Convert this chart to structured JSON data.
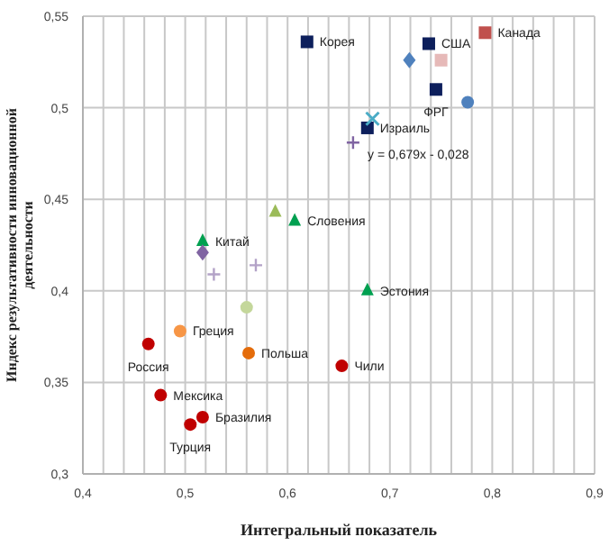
{
  "chart_data": {
    "type": "scatter",
    "xlabel": "Интегральный показатель",
    "ylabel": "Индекс результативности инновационной деятельности",
    "xlim": [
      0.4,
      0.9
    ],
    "ylim": [
      0.3,
      0.55
    ],
    "xticks": [
      {
        "value": 0.4,
        "label": "0,4"
      },
      {
        "value": 0.42,
        "label": null
      },
      {
        "value": 0.44,
        "label": null
      },
      {
        "value": 0.46,
        "label": null
      },
      {
        "value": 0.48,
        "label": null
      },
      {
        "value": 0.5,
        "label": "0,5"
      },
      {
        "value": 0.52,
        "label": null
      },
      {
        "value": 0.54,
        "label": null
      },
      {
        "value": 0.56,
        "label": null
      },
      {
        "value": 0.58,
        "label": null
      },
      {
        "value": 0.6,
        "label": "0,6"
      },
      {
        "value": 0.62,
        "label": null
      },
      {
        "value": 0.64,
        "label": null
      },
      {
        "value": 0.66,
        "label": null
      },
      {
        "value": 0.68,
        "label": null
      },
      {
        "value": 0.7,
        "label": "0,7"
      },
      {
        "value": 0.72,
        "label": null
      },
      {
        "value": 0.74,
        "label": null
      },
      {
        "value": 0.76,
        "label": null
      },
      {
        "value": 0.78,
        "label": null
      },
      {
        "value": 0.8,
        "label": "0,8"
      },
      {
        "value": 0.82,
        "label": null
      },
      {
        "value": 0.84,
        "label": null
      },
      {
        "value": 0.86,
        "label": null
      },
      {
        "value": 0.88,
        "label": null
      },
      {
        "value": 0.9,
        "label": "0,9"
      }
    ],
    "yticks": [
      {
        "value": 0.3,
        "label": "0,3"
      },
      {
        "value": 0.35,
        "label": "0,35"
      },
      {
        "value": 0.4,
        "label": "0,4"
      },
      {
        "value": 0.45,
        "label": "0,45"
      },
      {
        "value": 0.5,
        "label": "0,5"
      },
      {
        "value": 0.55,
        "label": "0,55"
      }
    ],
    "grid": true,
    "legend": false,
    "series": [
      {
        "name": "Корея",
        "color": "#0d1f5c",
        "marker": "square",
        "x": [
          0.619
        ],
        "values": [
          0.536
        ]
      },
      {
        "name": "США",
        "color": "#0d1f5c",
        "marker": "square",
        "x": [
          0.738
        ],
        "values": [
          0.535
        ]
      },
      {
        "name": "ФРГ",
        "color": "#0d1f5c",
        "marker": "square",
        "x": [
          0.745
        ],
        "values": [
          0.51
        ]
      },
      {
        "name": "Израиль",
        "color": "#0d1f5c",
        "marker": "square",
        "x": [
          0.678
        ],
        "values": [
          0.489
        ]
      },
      {
        "name": "Канада",
        "color": "#c0504d",
        "marker": "square",
        "x": [
          0.793
        ],
        "values": [
          0.541
        ]
      },
      {
        "color": "#e6b9b8",
        "marker": "square",
        "x": [
          0.75
        ],
        "values": [
          0.526
        ]
      },
      {
        "color": "#4f81bd",
        "marker": "diamond",
        "x": [
          0.719
        ],
        "values": [
          0.526
        ]
      },
      {
        "color": "#4f81bd",
        "marker": "circle",
        "x": [
          0.776
        ],
        "values": [
          0.503
        ]
      },
      {
        "color": "#4bacc6",
        "marker": "x",
        "x": [
          0.683
        ],
        "values": [
          0.494
        ]
      },
      {
        "color": "#8064a2",
        "marker": "cross",
        "x": [
          0.664
        ],
        "values": [
          0.481
        ]
      },
      {
        "color": "#9bbb59",
        "marker": "triangle",
        "x": [
          0.588
        ],
        "values": [
          0.443
        ]
      },
      {
        "name": "Словения",
        "color": "#00a050",
        "marker": "triangle",
        "x": [
          0.607
        ],
        "values": [
          0.438
        ]
      },
      {
        "name": "Китай",
        "color": "#00a050",
        "marker": "triangle",
        "x": [
          0.517
        ],
        "values": [
          0.427
        ]
      },
      {
        "name": "Эстония",
        "color": "#00a050",
        "marker": "triangle",
        "x": [
          0.678
        ],
        "values": [
          0.4
        ]
      },
      {
        "color": "#8064a2",
        "marker": "diamond",
        "x": [
          0.517
        ],
        "values": [
          0.421
        ]
      },
      {
        "color": "#b3a2c7",
        "marker": "cross",
        "x": [
          0.528,
          0.569
        ],
        "values": [
          0.409,
          0.414
        ]
      },
      {
        "color": "#c4d79b",
        "marker": "circle",
        "x": [
          0.56
        ],
        "values": [
          0.391
        ]
      },
      {
        "name": "Греция",
        "color": "#f79646",
        "marker": "circle",
        "x": [
          0.495
        ],
        "values": [
          0.378
        ]
      },
      {
        "name": "Польша",
        "color": "#e46c0a",
        "marker": "circle",
        "x": [
          0.562
        ],
        "values": [
          0.366
        ]
      },
      {
        "name": "Россия",
        "color": "#c00000",
        "marker": "circle",
        "x": [
          0.464
        ],
        "values": [
          0.371
        ]
      },
      {
        "name": "Чили",
        "color": "#c00000",
        "marker": "circle",
        "x": [
          0.653
        ],
        "values": [
          0.359
        ]
      },
      {
        "name": "Мексика",
        "color": "#c00000",
        "marker": "circle",
        "x": [
          0.476
        ],
        "values": [
          0.343
        ]
      },
      {
        "name": "Бразилия",
        "color": "#c00000",
        "marker": "circle",
        "x": [
          0.517
        ],
        "values": [
          0.331
        ]
      },
      {
        "name": "Турция",
        "color": "#c00000",
        "marker": "circle",
        "x": [
          0.505
        ],
        "values": [
          0.327
        ]
      }
    ],
    "annotations": [
      "y = 0,679x - 0,028"
    ]
  }
}
